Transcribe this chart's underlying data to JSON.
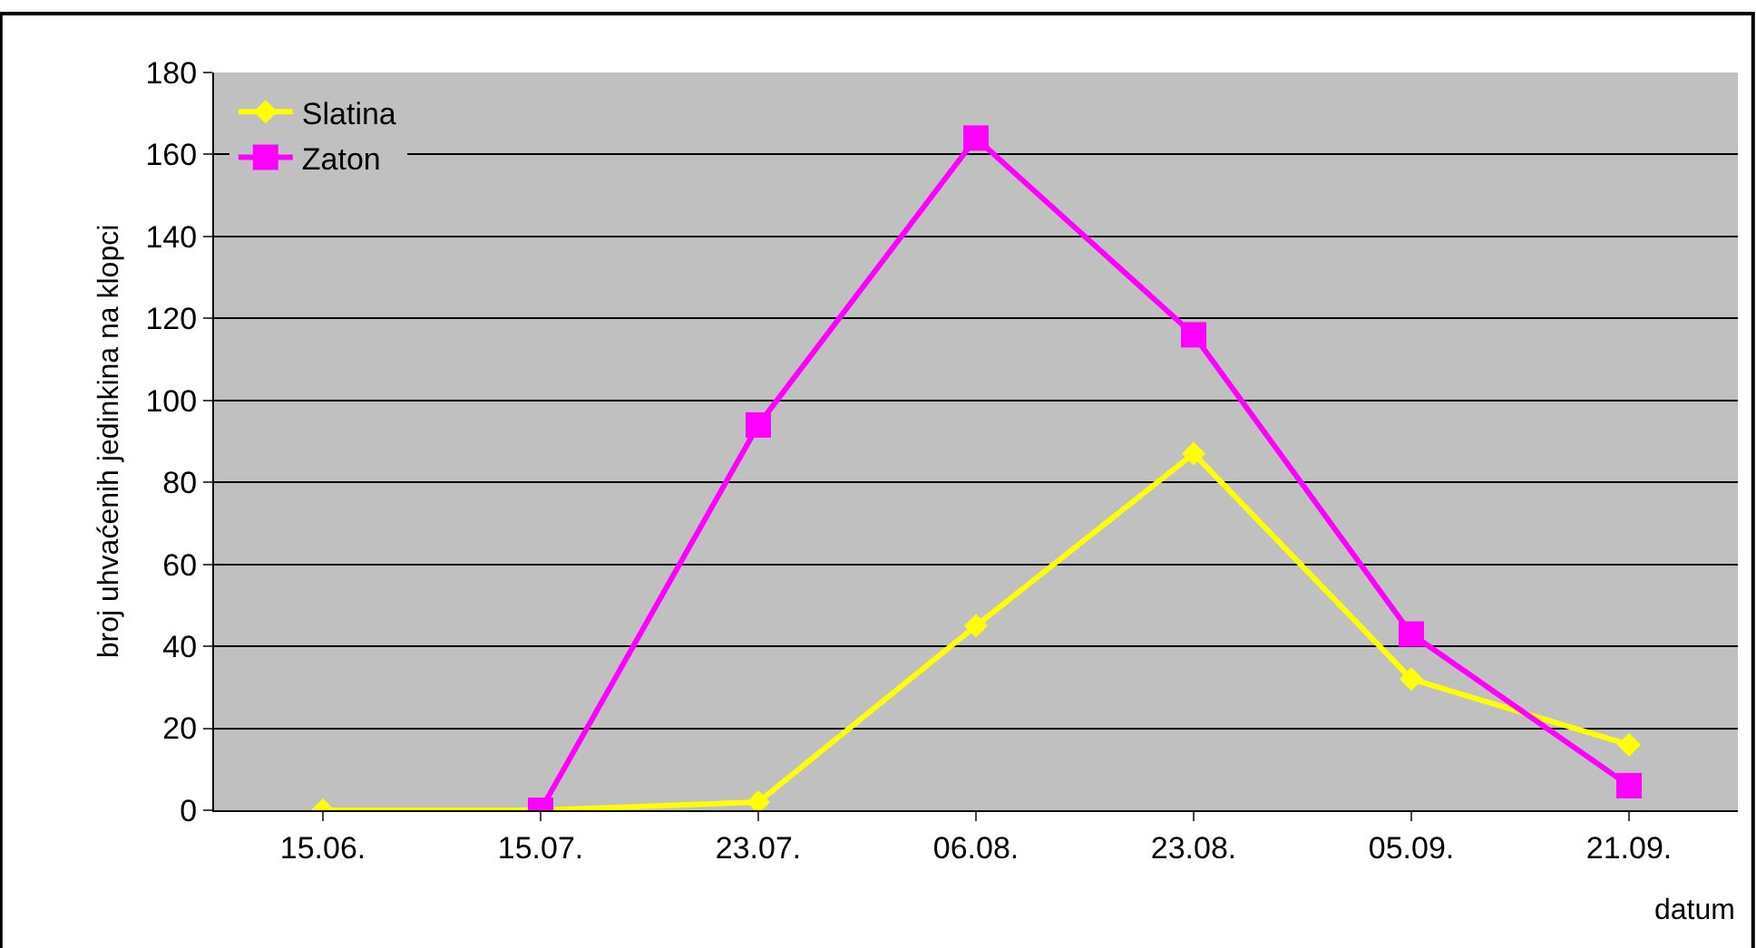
{
  "chart_data": {
    "type": "line",
    "xlabel": "datum",
    "ylabel": "broj uhvaćenih jedinkina na klopci",
    "categories": [
      "15.06.",
      "15.07.",
      "23.07.",
      "06.08.",
      "23.08.",
      "05.09.",
      "21.09."
    ],
    "series": [
      {
        "name": "Slatina",
        "color": "#ffff00",
        "marker": "diamond",
        "values": [
          0,
          0,
          2,
          45,
          87,
          32,
          16
        ]
      },
      {
        "name": "Zaton",
        "color": "#ff00ff",
        "marker": "square",
        "values": [
          null,
          0,
          94,
          164,
          116,
          43,
          6
        ]
      }
    ],
    "ylim": [
      0,
      180
    ],
    "yticks": [
      0,
      20,
      40,
      60,
      80,
      100,
      120,
      140,
      160,
      180
    ],
    "grid": "y",
    "legend": "top left"
  }
}
